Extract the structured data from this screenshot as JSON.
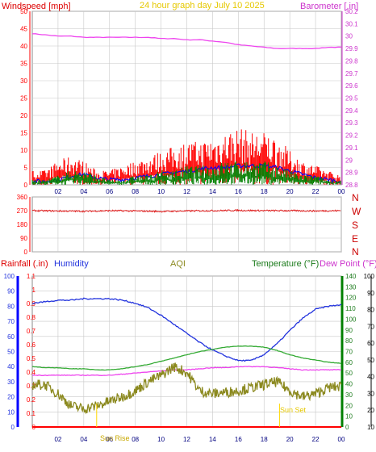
{
  "header": {
    "wind_label": "Windspeed [mph]",
    "title": "24 hour graph day   July 10 2025",
    "baro_label": "Barometer [.in]"
  },
  "panel2": {
    "compass": [
      "N",
      "W",
      "S",
      "E",
      "N"
    ]
  },
  "panel3": {
    "rain_label": "Rainfall (.in)",
    "humidity_label": "Humidity",
    "aqi_label": "AQI",
    "temp_label": "Temperature (°F)",
    "dew_label": "Dew Point (°F)",
    "sunrise_label": "Sun Rise",
    "sunset_label": "Sun Set"
  },
  "colors": {
    "wind": "#ff0000",
    "gust": "#ff0000",
    "wind_avg": "#0000ff",
    "wind_low": "#008000",
    "barometer": "#ee44ee",
    "direction": "#e02020",
    "humidity": "#2233dd",
    "temperature": "#33aa33",
    "dew_point": "#ee44ee",
    "aqi": "#8c8a20",
    "rain": "#ff0000",
    "sun": "#ffd700",
    "grid": "#c8c8c8",
    "axis_red": "#ff0000",
    "axis_blue": "#0000ff",
    "axis_green": "#008000",
    "axis_black": "#000000"
  },
  "chart_data": [
    {
      "type": "line",
      "title": "24 hour graph day   July 10 2025",
      "xlabel": "",
      "x_ticks": [
        "02",
        "04",
        "06",
        "08",
        "10",
        "12",
        "14",
        "16",
        "18",
        "20",
        "22",
        "00"
      ],
      "ylabel_left": "Windspeed [mph]",
      "ylim_left": [
        0,
        50
      ],
      "yticks_left": [
        0,
        5,
        10,
        15,
        20,
        25,
        30,
        35,
        40,
        45,
        50
      ],
      "ylabel_right": "Barometer [.in]",
      "ylim_right": [
        28.8,
        30.2
      ],
      "yticks_right": [
        "28.8",
        "28.9",
        "29",
        "29.1",
        "29.2",
        "29.3",
        "29.4",
        "29.5",
        "29.6",
        "29.7",
        "29.8",
        "29.9",
        "30",
        "30.1",
        "30.2"
      ],
      "grid": true,
      "series": [
        {
          "name": "Barometer [.in]",
          "axis": "right",
          "color": "#ee44ee",
          "x": [
            0,
            1,
            2,
            3,
            4,
            5,
            6,
            7,
            8,
            9,
            10,
            11,
            12,
            13,
            14,
            15,
            16,
            17,
            18,
            19,
            20,
            21,
            22,
            23,
            24
          ],
          "values": [
            30.02,
            30.01,
            30.0,
            30.0,
            29.99,
            29.99,
            29.99,
            29.99,
            29.99,
            29.99,
            29.98,
            29.98,
            29.97,
            29.97,
            29.96,
            29.95,
            29.93,
            29.92,
            29.91,
            29.9,
            29.9,
            29.9,
            29.9,
            29.91,
            29.91
          ]
        },
        {
          "name": "Gust",
          "axis": "left",
          "color": "#ff0000",
          "role": "gust",
          "x": [
            0,
            1,
            2,
            3,
            4,
            5,
            6,
            7,
            8,
            9,
            10,
            11,
            12,
            13,
            14,
            15,
            16,
            17,
            18,
            19,
            20,
            21,
            22,
            23,
            24
          ],
          "values": [
            3,
            3,
            5,
            6,
            5,
            3,
            3,
            4,
            5,
            6,
            7,
            8,
            9,
            9,
            10,
            11,
            12,
            11,
            11,
            10,
            7,
            5,
            4,
            3,
            2
          ]
        },
        {
          "name": "Average",
          "axis": "left",
          "color": "#0000ff",
          "x": [
            0,
            1,
            2,
            3,
            4,
            5,
            6,
            7,
            8,
            9,
            10,
            11,
            12,
            13,
            14,
            15,
            16,
            17,
            18,
            19,
            20,
            21,
            22,
            23,
            24
          ],
          "values": [
            1,
            1,
            1.5,
            2.5,
            3,
            2,
            1.5,
            1.5,
            2,
            2.5,
            3,
            3.5,
            4,
            4.5,
            5,
            5,
            5.5,
            5.5,
            5.5,
            5,
            4,
            3,
            2,
            1.5,
            1
          ]
        },
        {
          "name": "Wind",
          "axis": "left",
          "color": "#008000",
          "role": "wind",
          "x": [
            0,
            1,
            2,
            3,
            4,
            5,
            6,
            7,
            8,
            9,
            10,
            11,
            12,
            13,
            14,
            15,
            16,
            17,
            18,
            19,
            20,
            21,
            22,
            23,
            24
          ],
          "values": [
            1,
            1,
            2,
            3,
            3,
            2,
            1,
            1,
            2,
            2,
            3,
            3,
            4,
            4,
            4,
            5,
            5,
            5,
            5,
            4,
            3,
            2,
            2,
            1,
            1
          ]
        }
      ]
    },
    {
      "type": "line",
      "title": "",
      "ylim": [
        0,
        360
      ],
      "yticks": [
        0,
        90,
        180,
        270,
        360
      ],
      "ytick_labels": [
        "0",
        "90",
        "180",
        "270",
        "360"
      ],
      "series": [
        {
          "name": "Wind direction",
          "color": "#e02020",
          "x": [
            0,
            2,
            4,
            6,
            8,
            10,
            12,
            14,
            16,
            18,
            20,
            22,
            24
          ],
          "values": [
            270,
            268,
            266,
            270,
            268,
            265,
            268,
            270,
            272,
            270,
            270,
            268,
            270
          ]
        }
      ]
    },
    {
      "type": "line",
      "title": "",
      "x_ticks": [
        "02",
        "04",
        "06",
        "08",
        "10",
        "12",
        "14",
        "16",
        "18",
        "20",
        "22",
        "00"
      ],
      "axes": {
        "humidity": {
          "label": "Humidity",
          "ylim": [
            0,
            100
          ],
          "yticks": [
            0,
            10,
            20,
            30,
            40,
            50,
            60,
            70,
            80,
            90,
            100
          ]
        },
        "rain": {
          "label": "Rainfall (.in)",
          "ylim": [
            0,
            1.1
          ],
          "yticks": [
            "0",
            "0.1",
            "0.2",
            "0.3",
            "0.4",
            "0.5",
            "0.6",
            "0.7",
            "0.8",
            "0.9",
            "1",
            "1.1"
          ]
        },
        "temperature": {
          "label": "Temperature (°F)",
          "ylim": [
            0,
            140
          ],
          "yticks": [
            0,
            10,
            20,
            30,
            40,
            50,
            60,
            70,
            80,
            90,
            100,
            110,
            120,
            130,
            140
          ]
        },
        "dew_point": {
          "label": "Dew Point (°F)",
          "ylim": [
            10,
            100
          ],
          "yticks": [
            10,
            20,
            30,
            40,
            50,
            60,
            70,
            80,
            90,
            100
          ]
        }
      },
      "grid": true,
      "series": [
        {
          "name": "Humidity",
          "axis": "humidity",
          "color": "#2233dd",
          "x": [
            0,
            1,
            2,
            3,
            4,
            5,
            6,
            7,
            8,
            9,
            10,
            11,
            12,
            13,
            14,
            15,
            16,
            17,
            18,
            19,
            20,
            21,
            22,
            23,
            24
          ],
          "values": [
            82,
            83,
            84,
            84,
            85,
            85,
            85,
            84,
            82,
            79,
            74,
            68,
            62,
            56,
            51,
            47,
            44,
            44,
            48,
            55,
            64,
            72,
            78,
            80,
            81
          ]
        },
        {
          "name": "Temperature",
          "axis": "temperature",
          "color": "#33aa33",
          "x": [
            0,
            1,
            2,
            3,
            4,
            5,
            6,
            7,
            8,
            9,
            10,
            11,
            12,
            13,
            14,
            15,
            16,
            17,
            18,
            19,
            20,
            21,
            22,
            23,
            24
          ],
          "values": [
            56,
            55,
            55,
            54,
            54,
            53,
            53,
            54,
            56,
            58,
            61,
            64,
            67,
            70,
            72,
            74,
            75,
            75,
            74,
            71,
            67,
            64,
            62,
            60,
            59
          ]
        },
        {
          "name": "Dew Point",
          "axis": "temperature",
          "color": "#ee44ee",
          "x": [
            0,
            1,
            2,
            3,
            4,
            5,
            6,
            7,
            8,
            9,
            10,
            11,
            12,
            13,
            14,
            15,
            16,
            17,
            18,
            19,
            20,
            21,
            22,
            23,
            24
          ],
          "values": [
            48,
            48,
            48,
            48,
            48,
            48,
            48,
            49,
            50,
            51,
            52,
            53,
            53,
            54,
            55,
            55,
            56,
            56,
            56,
            55,
            54,
            53,
            53,
            53,
            53
          ]
        },
        {
          "name": "AQI",
          "axis": "humidity",
          "color": "#8c8a20",
          "x": [
            0,
            1,
            2,
            3,
            4,
            5,
            6,
            7,
            8,
            9,
            10,
            11,
            12,
            13,
            14,
            15,
            16,
            17,
            18,
            19,
            20,
            21,
            22,
            23,
            24
          ],
          "values": [
            28,
            28,
            22,
            14,
            12,
            14,
            17,
            20,
            24,
            30,
            34,
            40,
            36,
            24,
            22,
            23,
            24,
            26,
            28,
            30,
            24,
            20,
            22,
            26,
            27
          ]
        },
        {
          "name": "Rainfall",
          "axis": "rain",
          "color": "#ff0000",
          "x": [
            0,
            24
          ],
          "values": [
            0,
            0
          ]
        }
      ],
      "annotations": [
        {
          "label": "Sun Rise",
          "x": 5.0
        },
        {
          "label": "Sun Set",
          "x": 19.2
        }
      ]
    }
  ]
}
